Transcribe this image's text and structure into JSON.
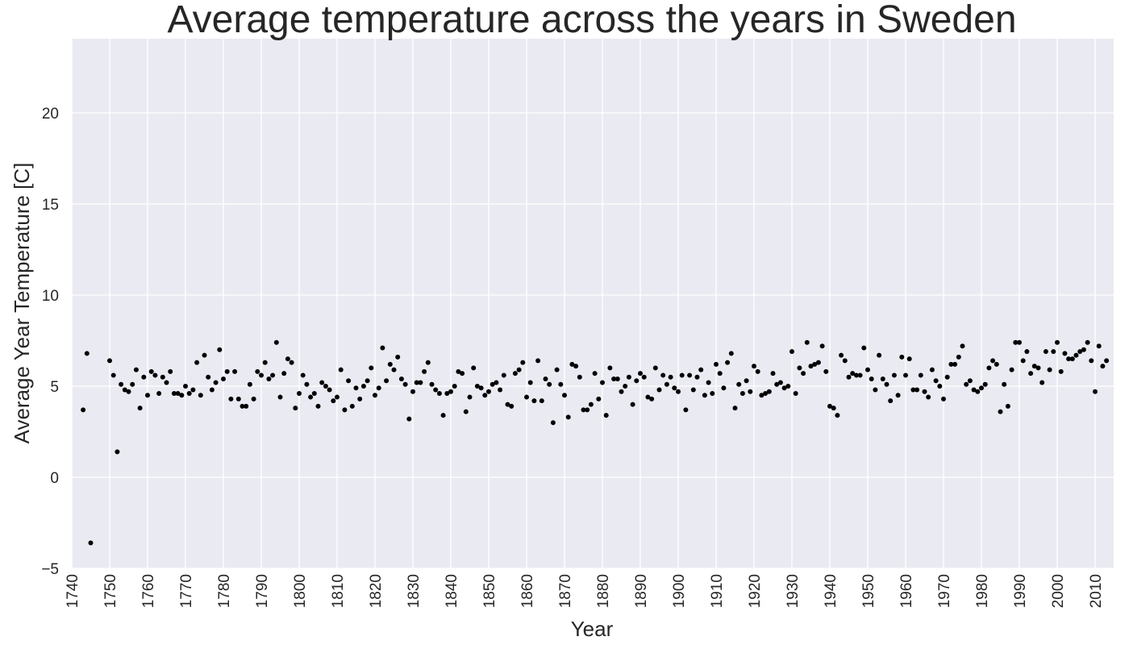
{
  "chart_data": {
    "type": "scatter",
    "title": "Average temperature across the years in Sweden",
    "xlabel": "Year",
    "ylabel": "Average Year Temperature [C]",
    "xlim": [
      1740,
      2015
    ],
    "ylim": [
      -5,
      24
    ],
    "xticks": [
      1740,
      1750,
      1760,
      1770,
      1780,
      1790,
      1800,
      1810,
      1820,
      1830,
      1840,
      1850,
      1860,
      1870,
      1880,
      1890,
      1900,
      1910,
      1920,
      1930,
      1940,
      1950,
      1960,
      1970,
      1980,
      1990,
      2000,
      2010
    ],
    "yticks": [
      -5,
      0,
      5,
      10,
      15,
      20
    ],
    "grid": true,
    "colors": {
      "background": "#eaeaf2",
      "grid": "#ffffff",
      "marker": "#000000"
    },
    "points": [
      [
        1743,
        3.7
      ],
      [
        1744,
        6.8
      ],
      [
        1745,
        -3.6
      ],
      [
        1750,
        6.4
      ],
      [
        1751,
        5.6
      ],
      [
        1752,
        1.4
      ],
      [
        1753,
        5.1
      ],
      [
        1754,
        4.8
      ],
      [
        1755,
        4.7
      ],
      [
        1756,
        5.1
      ],
      [
        1757,
        5.9
      ],
      [
        1758,
        3.8
      ],
      [
        1759,
        5.5
      ],
      [
        1760,
        4.5
      ],
      [
        1761,
        5.8
      ],
      [
        1762,
        5.6
      ],
      [
        1763,
        4.6
      ],
      [
        1764,
        5.5
      ],
      [
        1765,
        5.2
      ],
      [
        1766,
        5.8
      ],
      [
        1767,
        4.6
      ],
      [
        1768,
        4.6
      ],
      [
        1769,
        4.5
      ],
      [
        1770,
        5.0
      ],
      [
        1771,
        4.6
      ],
      [
        1772,
        4.8
      ],
      [
        1773,
        6.3
      ],
      [
        1774,
        4.5
      ],
      [
        1775,
        6.7
      ],
      [
        1776,
        5.5
      ],
      [
        1777,
        4.8
      ],
      [
        1778,
        5.2
      ],
      [
        1779,
        7.0
      ],
      [
        1780,
        5.4
      ],
      [
        1781,
        5.8
      ],
      [
        1782,
        4.3
      ],
      [
        1783,
        5.8
      ],
      [
        1784,
        4.3
      ],
      [
        1785,
        3.9
      ],
      [
        1786,
        3.9
      ],
      [
        1787,
        5.1
      ],
      [
        1788,
        4.3
      ],
      [
        1789,
        5.8
      ],
      [
        1790,
        5.6
      ],
      [
        1791,
        6.3
      ],
      [
        1792,
        5.4
      ],
      [
        1793,
        5.6
      ],
      [
        1794,
        7.4
      ],
      [
        1795,
        4.4
      ],
      [
        1796,
        5.7
      ],
      [
        1797,
        6.5
      ],
      [
        1798,
        6.3
      ],
      [
        1799,
        3.8
      ],
      [
        1800,
        4.6
      ],
      [
        1801,
        5.6
      ],
      [
        1802,
        5.1
      ],
      [
        1803,
        4.4
      ],
      [
        1804,
        4.6
      ],
      [
        1805,
        3.9
      ],
      [
        1806,
        5.2
      ],
      [
        1807,
        5.0
      ],
      [
        1808,
        4.8
      ],
      [
        1809,
        4.2
      ],
      [
        1810,
        4.4
      ],
      [
        1811,
        5.9
      ],
      [
        1812,
        3.7
      ],
      [
        1813,
        5.3
      ],
      [
        1814,
        3.9
      ],
      [
        1815,
        4.9
      ],
      [
        1816,
        4.3
      ],
      [
        1817,
        5.0
      ],
      [
        1818,
        5.3
      ],
      [
        1819,
        6.0
      ],
      [
        1820,
        4.5
      ],
      [
        1821,
        4.9
      ],
      [
        1822,
        7.1
      ],
      [
        1823,
        5.3
      ],
      [
        1824,
        6.2
      ],
      [
        1825,
        5.9
      ],
      [
        1826,
        6.6
      ],
      [
        1827,
        5.4
      ],
      [
        1828,
        5.1
      ],
      [
        1829,
        3.2
      ],
      [
        1830,
        4.7
      ],
      [
        1831,
        5.2
      ],
      [
        1832,
        5.2
      ],
      [
        1833,
        5.8
      ],
      [
        1834,
        6.3
      ],
      [
        1835,
        5.1
      ],
      [
        1836,
        4.8
      ],
      [
        1837,
        4.6
      ],
      [
        1838,
        3.4
      ],
      [
        1839,
        4.6
      ],
      [
        1840,
        4.7
      ],
      [
        1841,
        5.0
      ],
      [
        1842,
        5.8
      ],
      [
        1843,
        5.7
      ],
      [
        1844,
        3.6
      ],
      [
        1845,
        4.4
      ],
      [
        1846,
        6.0
      ],
      [
        1847,
        5.0
      ],
      [
        1848,
        4.9
      ],
      [
        1849,
        4.5
      ],
      [
        1850,
        4.7
      ],
      [
        1851,
        5.1
      ],
      [
        1852,
        5.2
      ],
      [
        1853,
        4.8
      ],
      [
        1854,
        5.6
      ],
      [
        1855,
        4.0
      ],
      [
        1856,
        3.9
      ],
      [
        1857,
        5.7
      ],
      [
        1858,
        5.9
      ],
      [
        1859,
        6.3
      ],
      [
        1860,
        4.4
      ],
      [
        1861,
        5.2
      ],
      [
        1862,
        4.2
      ],
      [
        1863,
        6.4
      ],
      [
        1864,
        4.2
      ],
      [
        1865,
        5.4
      ],
      [
        1866,
        5.1
      ],
      [
        1867,
        3.0
      ],
      [
        1868,
        5.9
      ],
      [
        1869,
        5.1
      ],
      [
        1870,
        4.5
      ],
      [
        1871,
        3.3
      ],
      [
        1872,
        6.2
      ],
      [
        1873,
        6.1
      ],
      [
        1874,
        5.5
      ],
      [
        1875,
        3.7
      ],
      [
        1876,
        3.7
      ],
      [
        1877,
        4.0
      ],
      [
        1878,
        5.7
      ],
      [
        1879,
        4.3
      ],
      [
        1880,
        5.2
      ],
      [
        1881,
        3.4
      ],
      [
        1882,
        6.0
      ],
      [
        1883,
        5.4
      ],
      [
        1884,
        5.4
      ],
      [
        1885,
        4.7
      ],
      [
        1886,
        5.0
      ],
      [
        1887,
        5.5
      ],
      [
        1888,
        4.0
      ],
      [
        1889,
        5.3
      ],
      [
        1890,
        5.7
      ],
      [
        1891,
        5.5
      ],
      [
        1892,
        4.4
      ],
      [
        1893,
        4.3
      ],
      [
        1894,
        6.0
      ],
      [
        1895,
        4.8
      ],
      [
        1896,
        5.6
      ],
      [
        1897,
        5.1
      ],
      [
        1898,
        5.5
      ],
      [
        1899,
        4.9
      ],
      [
        1900,
        4.7
      ],
      [
        1901,
        5.6
      ],
      [
        1902,
        3.7
      ],
      [
        1903,
        5.6
      ],
      [
        1904,
        4.8
      ],
      [
        1905,
        5.5
      ],
      [
        1906,
        5.9
      ],
      [
        1907,
        4.5
      ],
      [
        1908,
        5.2
      ],
      [
        1909,
        4.6
      ],
      [
        1910,
        6.2
      ],
      [
        1911,
        5.7
      ],
      [
        1912,
        4.9
      ],
      [
        1913,
        6.3
      ],
      [
        1914,
        6.8
      ],
      [
        1915,
        3.8
      ],
      [
        1916,
        5.1
      ],
      [
        1917,
        4.6
      ],
      [
        1918,
        5.3
      ],
      [
        1919,
        4.7
      ],
      [
        1920,
        6.1
      ],
      [
        1921,
        5.8
      ],
      [
        1922,
        4.5
      ],
      [
        1923,
        4.6
      ],
      [
        1924,
        4.7
      ],
      [
        1925,
        5.7
      ],
      [
        1926,
        5.1
      ],
      [
        1927,
        5.2
      ],
      [
        1928,
        4.9
      ],
      [
        1929,
        5.0
      ],
      [
        1930,
        6.9
      ],
      [
        1931,
        4.6
      ],
      [
        1932,
        6.0
      ],
      [
        1933,
        5.7
      ],
      [
        1934,
        7.4
      ],
      [
        1935,
        6.1
      ],
      [
        1936,
        6.2
      ],
      [
        1937,
        6.3
      ],
      [
        1938,
        7.2
      ],
      [
        1939,
        5.8
      ],
      [
        1940,
        3.9
      ],
      [
        1941,
        3.8
      ],
      [
        1942,
        3.4
      ],
      [
        1943,
        6.7
      ],
      [
        1944,
        6.4
      ],
      [
        1945,
        5.5
      ],
      [
        1946,
        5.7
      ],
      [
        1947,
        5.6
      ],
      [
        1948,
        5.6
      ],
      [
        1949,
        7.1
      ],
      [
        1950,
        5.9
      ],
      [
        1951,
        5.4
      ],
      [
        1952,
        4.8
      ],
      [
        1953,
        6.7
      ],
      [
        1954,
        5.4
      ],
      [
        1955,
        5.1
      ],
      [
        1956,
        4.2
      ],
      [
        1957,
        5.6
      ],
      [
        1958,
        4.5
      ],
      [
        1959,
        6.6
      ],
      [
        1960,
        5.6
      ],
      [
        1961,
        6.5
      ],
      [
        1962,
        4.8
      ],
      [
        1963,
        4.8
      ],
      [
        1964,
        5.6
      ],
      [
        1965,
        4.7
      ],
      [
        1966,
        4.4
      ],
      [
        1967,
        5.9
      ],
      [
        1968,
        5.3
      ],
      [
        1969,
        5.0
      ],
      [
        1970,
        4.3
      ],
      [
        1971,
        5.5
      ],
      [
        1972,
        6.2
      ],
      [
        1973,
        6.2
      ],
      [
        1974,
        6.6
      ],
      [
        1975,
        7.2
      ],
      [
        1976,
        5.1
      ],
      [
        1977,
        5.3
      ],
      [
        1978,
        4.8
      ],
      [
        1979,
        4.7
      ],
      [
        1980,
        4.9
      ],
      [
        1981,
        5.1
      ],
      [
        1982,
        6.0
      ],
      [
        1983,
        6.4
      ],
      [
        1984,
        6.2
      ],
      [
        1985,
        3.6
      ],
      [
        1986,
        5.1
      ],
      [
        1987,
        3.9
      ],
      [
        1988,
        5.9
      ],
      [
        1989,
        7.4
      ],
      [
        1990,
        7.4
      ],
      [
        1991,
        6.4
      ],
      [
        1992,
        6.9
      ],
      [
        1993,
        5.7
      ],
      [
        1994,
        6.1
      ],
      [
        1995,
        6.0
      ],
      [
        1996,
        5.2
      ],
      [
        1997,
        6.9
      ],
      [
        1998,
        5.9
      ],
      [
        1999,
        6.9
      ],
      [
        2000,
        7.4
      ],
      [
        2001,
        5.8
      ],
      [
        2002,
        6.8
      ],
      [
        2003,
        6.5
      ],
      [
        2004,
        6.5
      ],
      [
        2005,
        6.7
      ],
      [
        2006,
        6.9
      ],
      [
        2007,
        7.0
      ],
      [
        2008,
        7.4
      ],
      [
        2009,
        6.4
      ],
      [
        2010,
        4.7
      ],
      [
        2011,
        7.2
      ],
      [
        2012,
        6.1
      ],
      [
        2013,
        6.4
      ]
    ]
  }
}
